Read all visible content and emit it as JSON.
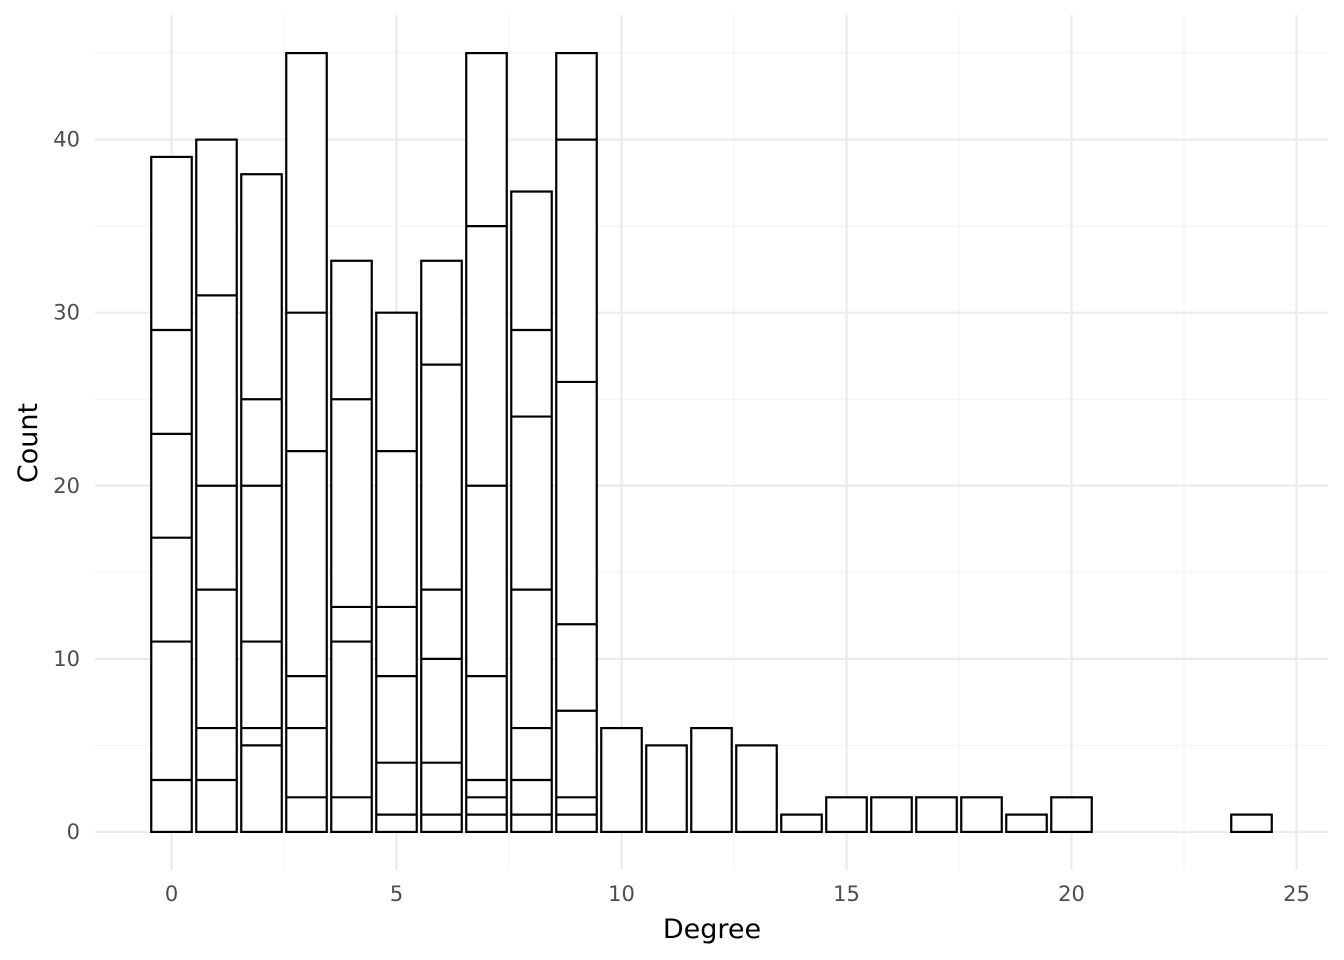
{
  "chart_data": {
    "type": "bar",
    "subtype": "stacked-histogram",
    "title": "",
    "xlabel": "Degree",
    "ylabel": "Count",
    "xlim": [
      -1.7,
      25.7
    ],
    "ylim": [
      -2.2,
      47.2
    ],
    "x_ticks": [
      0,
      5,
      10,
      15,
      20,
      25
    ],
    "y_ticks": [
      0,
      10,
      20,
      30,
      40
    ],
    "grid": true,
    "legend": "none",
    "colors": {
      "fill": "#ffffff",
      "outline": "#000000",
      "grid": "#ebebeb",
      "tick_text": "#4d4d4d"
    },
    "bars": [
      {
        "x": 0,
        "total": 39,
        "boundaries": [
          3,
          11,
          17,
          23,
          29
        ]
      },
      {
        "x": 1,
        "total": 40,
        "boundaries": [
          3,
          6,
          14,
          20,
          31
        ]
      },
      {
        "x": 2,
        "total": 38,
        "boundaries": [
          5,
          6,
          11,
          20,
          25
        ]
      },
      {
        "x": 3,
        "total": 45,
        "boundaries": [
          2,
          6,
          9,
          22,
          30
        ]
      },
      {
        "x": 4,
        "total": 33,
        "boundaries": [
          2,
          11,
          13,
          25
        ]
      },
      {
        "x": 5,
        "total": 30,
        "boundaries": [
          1,
          4,
          9,
          13,
          22
        ]
      },
      {
        "x": 6,
        "total": 33,
        "boundaries": [
          1,
          4,
          10,
          14,
          27
        ]
      },
      {
        "x": 7,
        "total": 45,
        "boundaries": [
          1,
          2,
          3,
          9,
          20,
          35
        ]
      },
      {
        "x": 8,
        "total": 37,
        "boundaries": [
          1,
          3,
          6,
          14,
          24,
          29
        ]
      },
      {
        "x": 9,
        "total": 45,
        "boundaries": [
          1,
          2,
          7,
          12,
          26,
          40
        ]
      },
      {
        "x": 10,
        "total": 6,
        "boundaries": []
      },
      {
        "x": 11,
        "total": 5,
        "boundaries": []
      },
      {
        "x": 12,
        "total": 6,
        "boundaries": []
      },
      {
        "x": 13,
        "total": 5,
        "boundaries": []
      },
      {
        "x": 14,
        "total": 1,
        "boundaries": []
      },
      {
        "x": 15,
        "total": 2,
        "boundaries": []
      },
      {
        "x": 16,
        "total": 2,
        "boundaries": []
      },
      {
        "x": 17,
        "total": 2,
        "boundaries": []
      },
      {
        "x": 18,
        "total": 2,
        "boundaries": []
      },
      {
        "x": 19,
        "total": 1,
        "boundaries": []
      },
      {
        "x": 20,
        "total": 2,
        "boundaries": []
      },
      {
        "x": 24,
        "total": 1,
        "boundaries": []
      }
    ]
  }
}
